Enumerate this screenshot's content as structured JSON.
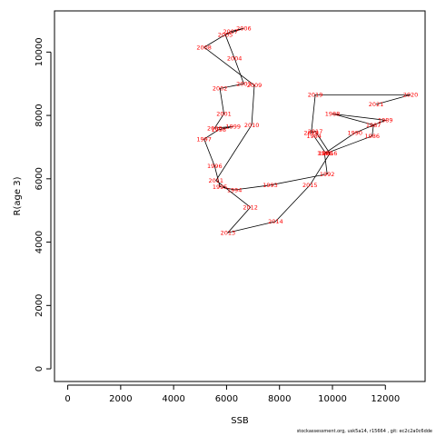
{
  "chart_data": {
    "type": "line",
    "title": "",
    "xlabel": "SSB",
    "ylabel": "R(age 3)",
    "xlim": [
      -500,
      13500
    ],
    "ylim": [
      -400,
      11300
    ],
    "xticks": [
      0,
      2000,
      4000,
      6000,
      8000,
      10000,
      12000
    ],
    "yticks": [
      0,
      2000,
      4000,
      6000,
      8000,
      10000
    ],
    "grid": false,
    "line_color": "#000000",
    "label_color": "#ff0000",
    "points": [
      {
        "year": "1984",
        "x": 9300,
        "y": 7350
      },
      {
        "year": "1985",
        "x": 9750,
        "y": 6800
      },
      {
        "year": "1986",
        "x": 11500,
        "y": 7350
      },
      {
        "year": "1987",
        "x": 11550,
        "y": 7700
      },
      {
        "year": "1988",
        "x": 10000,
        "y": 8050
      },
      {
        "year": "1989",
        "x": 12000,
        "y": 7850
      },
      {
        "year": "1990",
        "x": 10850,
        "y": 7450
      },
      {
        "year": "1991",
        "x": 9700,
        "y": 6800
      },
      {
        "year": "1992",
        "x": 9800,
        "y": 6150
      },
      {
        "year": "1993",
        "x": 7650,
        "y": 5800
      },
      {
        "year": "1994",
        "x": 6300,
        "y": 5650
      },
      {
        "year": "1995",
        "x": 5750,
        "y": 5750
      },
      {
        "year": "1996",
        "x": 5550,
        "y": 6400
      },
      {
        "year": "1997",
        "x": 5150,
        "y": 7250
      },
      {
        "year": "1998",
        "x": 5700,
        "y": 7550
      },
      {
        "year": "1999",
        "x": 6250,
        "y": 7650
      },
      {
        "year": "2000",
        "x": 5550,
        "y": 7600
      },
      {
        "year": "2001",
        "x": 5900,
        "y": 8050
      },
      {
        "year": "2002",
        "x": 5750,
        "y": 8850
      },
      {
        "year": "2003",
        "x": 6650,
        "y": 9000
      },
      {
        "year": "2004",
        "x": 6300,
        "y": 9800
      },
      {
        "year": "2005",
        "x": 5950,
        "y": 10550
      },
      {
        "year": "2006",
        "x": 6650,
        "y": 10750
      },
      {
        "year": "2007",
        "x": 6150,
        "y": 10650
      },
      {
        "year": "2008",
        "x": 5150,
        "y": 10150
      },
      {
        "year": "2009",
        "x": 7050,
        "y": 8950
      },
      {
        "year": "2010",
        "x": 6950,
        "y": 7700
      },
      {
        "year": "2011",
        "x": 5600,
        "y": 5950
      },
      {
        "year": "2012",
        "x": 6900,
        "y": 5100
      },
      {
        "year": "2013",
        "x": 6050,
        "y": 4300
      },
      {
        "year": "2014",
        "x": 7850,
        "y": 4650
      },
      {
        "year": "2015",
        "x": 9150,
        "y": 5800
      },
      {
        "year": "2016",
        "x": 9900,
        "y": 6800
      },
      {
        "year": "2017",
        "x": 9350,
        "y": 7500
      },
      {
        "year": "2018",
        "x": 9200,
        "y": 7450
      },
      {
        "year": "2019",
        "x": 9350,
        "y": 8650
      },
      {
        "year": "2020",
        "x": 12950,
        "y": 8650
      },
      {
        "year": "2021",
        "x": 11650,
        "y": 8350
      }
    ]
  },
  "footer": {
    "text": "stockassessment.org,  usk5a14,  r15664 ,  git:  ec2c2a0c6dde"
  }
}
